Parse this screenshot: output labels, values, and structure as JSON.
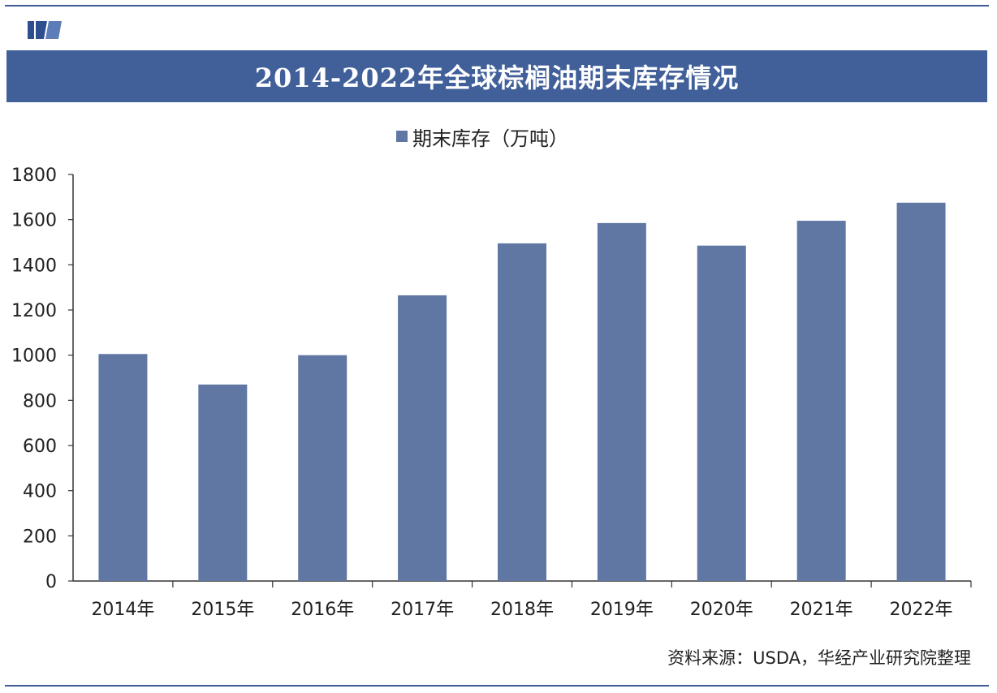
{
  "page": {
    "title": "2014-2022年全球棕榈油期末库存情况",
    "source": "资料来源：USDA，华经产业研究院整理"
  },
  "colors": {
    "title_bar": "#41609a",
    "bar": "#6077a3",
    "frame": "#3d5a96"
  },
  "chart_data": {
    "type": "bar",
    "title": "2014-2022年全球棕榈油期末库存情况",
    "categories": [
      "2014年",
      "2015年",
      "2016年",
      "2017年",
      "2018年",
      "2019年",
      "2020年",
      "2021年",
      "2022年"
    ],
    "series": [
      {
        "name": "期末库存（万吨）",
        "values": [
          1005,
          870,
          1000,
          1265,
          1495,
          1585,
          1485,
          1595,
          1675
        ]
      }
    ],
    "ylim": [
      0,
      1800
    ],
    "yticks": [
      0,
      200,
      400,
      600,
      800,
      1000,
      1200,
      1400,
      1600,
      1800
    ],
    "ytick_labels": [
      "0",
      "200",
      "400",
      "600",
      "800",
      "1000",
      "1200",
      "1400",
      "1600",
      "1800"
    ],
    "xlabel": "",
    "ylabel": "",
    "legend": "top-center",
    "grid": false
  }
}
